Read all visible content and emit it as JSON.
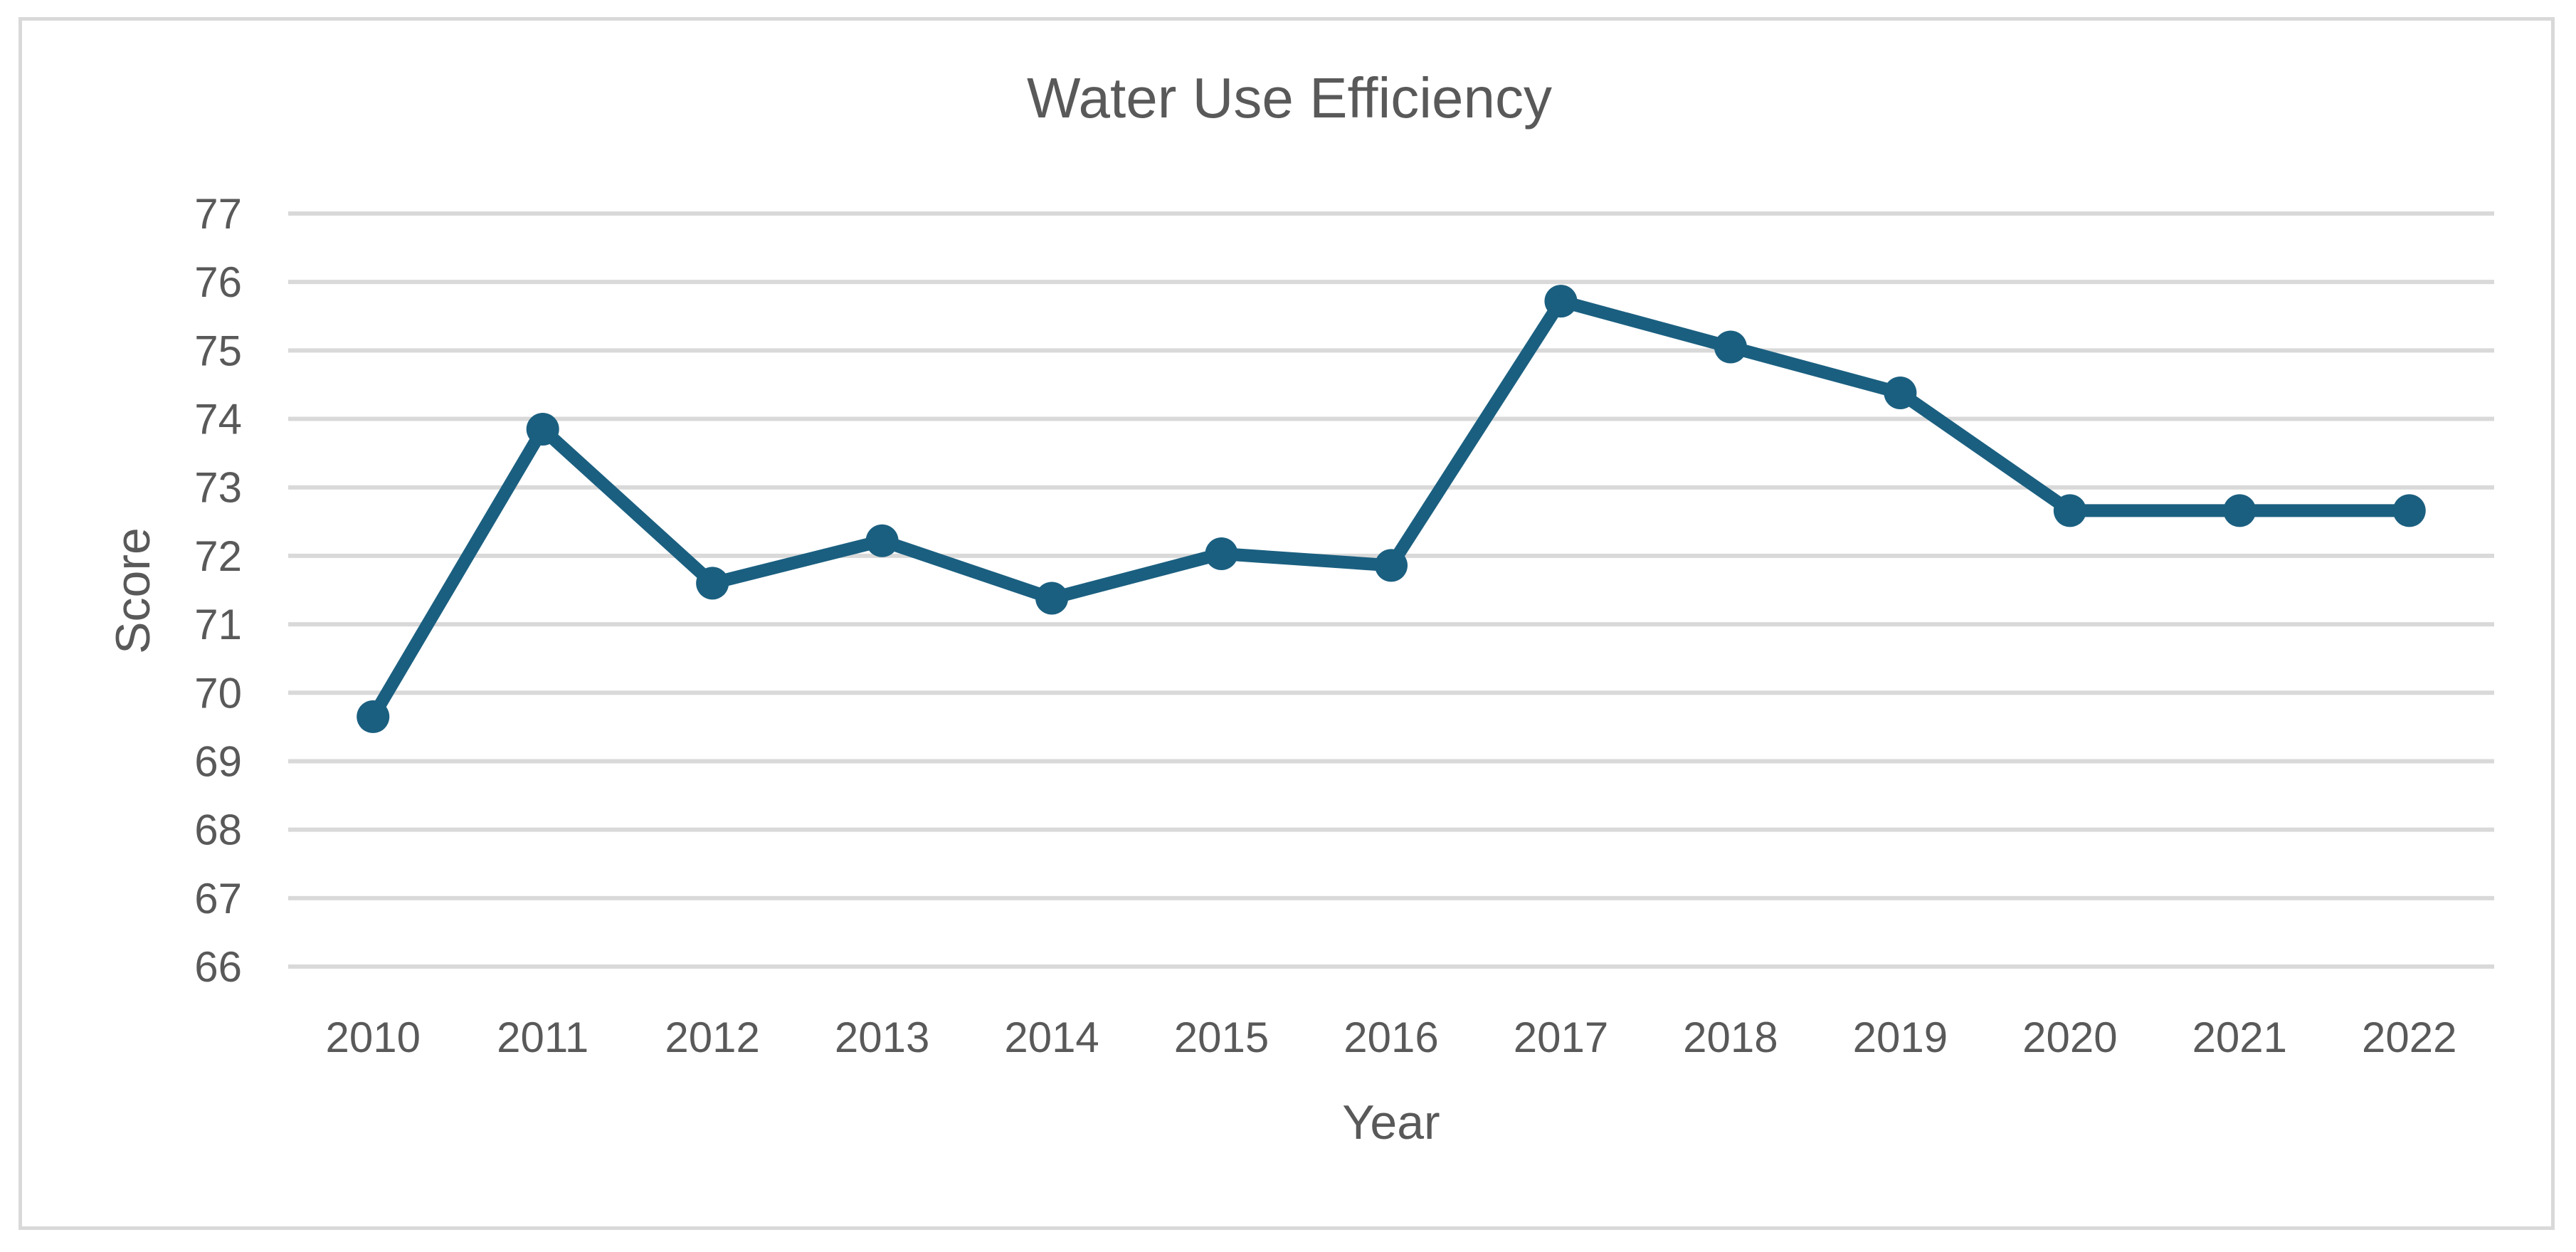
{
  "chart_data": {
    "type": "line",
    "title": "Water Use Efficiency",
    "xlabel": "Year",
    "ylabel": "Score",
    "ylim": [
      66,
      77
    ],
    "yticks": [
      "66",
      "67",
      "68",
      "69",
      "70",
      "71",
      "72",
      "73",
      "74",
      "75",
      "76",
      "77"
    ],
    "grid": true,
    "legend": "none",
    "categories": [
      "2010",
      "2011",
      "2012",
      "2013",
      "2014",
      "2015",
      "2016",
      "2017",
      "2018",
      "2019",
      "2020",
      "2021",
      "2022"
    ],
    "series": [
      {
        "name": "Score",
        "color": "#1a5f80",
        "values": [
          69.65,
          73.85,
          71.6,
          72.22,
          71.38,
          72.03,
          71.86,
          75.72,
          75.05,
          74.38,
          72.66,
          72.66,
          72.66
        ]
      }
    ]
  }
}
